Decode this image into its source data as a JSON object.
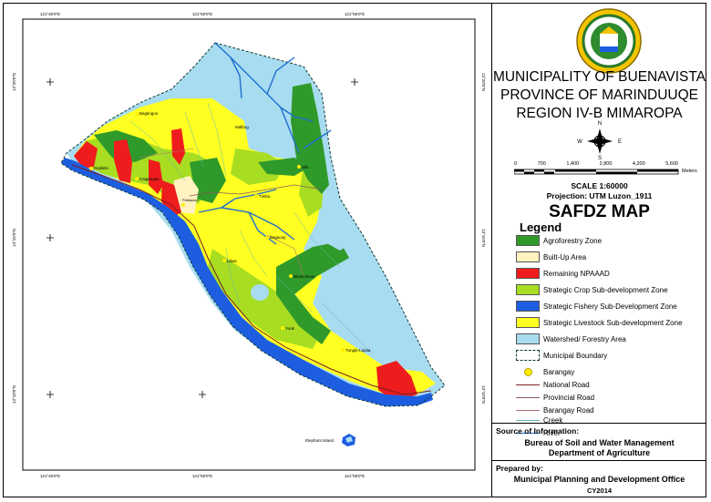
{
  "colors": {
    "agroforestry": "#2f9a2a",
    "builtup": "#fff3c0",
    "npaaad": "#ee1c1c",
    "crop": "#a8dd22",
    "fishery": "#1d5ee0",
    "livestock": "#ffff22",
    "watershed": "#a8dcf0",
    "river": "#1f6fd0",
    "national_road": "#7a2020",
    "provincial_road": "#8b5a5a",
    "barangay_road": "#b07070",
    "creek": "#60b8b8",
    "barangay": "#ffee00"
  },
  "coords": {
    "top": [
      "121°45'0\"E",
      "121°50'0\"E",
      "121°55'0\"E"
    ],
    "bottom": [
      "121°45'0\"E",
      "121°50'0\"E",
      "121°55'0\"E"
    ],
    "left": [
      "13°20'0\"N",
      "13°15'0\"N",
      "13°10'0\"N"
    ],
    "right": [
      "13°20'0\"N",
      "13°15'0\"N",
      "13°10'0\"N"
    ]
  },
  "places": [
    "Bagtingon",
    "Malbog",
    "Daykitin",
    "Caigangan",
    "Sihi",
    "Timbo",
    "Poblacion",
    "Bagacay",
    "Libas",
    "Bicas-bicas",
    "Yook",
    "Tungib-Lipata",
    "Elephant Island"
  ],
  "title": {
    "line1": "MUNICIPALITY OF BUENAVISTA",
    "line2": "PROVINCE OF MARINDUUQE",
    "line3": "REGION IV-B MIMAROPA"
  },
  "north_arrow": {
    "n": "N",
    "s": "S",
    "e": "E",
    "w": "W"
  },
  "scale": {
    "ticks": [
      "0",
      "700",
      "1,400",
      "2,800",
      "4,200",
      "5,600"
    ],
    "unit": "Meters",
    "ratio": "SCALE  1:60000",
    "projection": "Projection: UTM Luzon_1911"
  },
  "map_title": "SAFDZ MAP",
  "legend": {
    "title": "Legend",
    "items": [
      "Agroforestry Zone",
      "Built-Up Area",
      "Remaining NPAAAD",
      "Strategic Crop Sub-development Zone",
      "Strategic Fishery Sub-Development Zone",
      "Strategic Livestock Sub-development Zone",
      "Watershed/ Forestry Area",
      "Municipal Boundary",
      "Barangay",
      "National Road",
      "Provincial Road",
      "Barangay Road",
      "Creek",
      "River"
    ]
  },
  "source": {
    "heading": "Source of Information:",
    "line1": "Bureau of Soil and Water Management",
    "line2": "Department of Agriculture"
  },
  "prepared": {
    "heading": "Prepared by:",
    "line1": "Municipal Planning and Development Office",
    "line2": "CY2014"
  }
}
